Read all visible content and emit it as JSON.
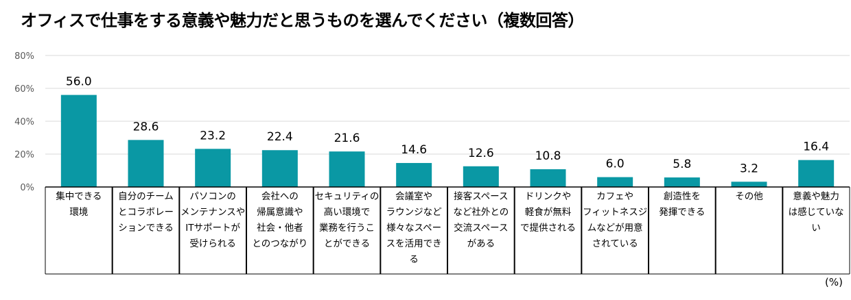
{
  "chart_data": {
    "type": "bar",
    "title": "オフィスで仕事をする意義や魅力だと思うものを選んでください（複数回答）",
    "unit_label": "(%)",
    "ylim": [
      0,
      80
    ],
    "yticks": [
      "0%",
      "20%",
      "40%",
      "60%",
      "80%"
    ],
    "ytick_values": [
      0,
      20,
      40,
      60,
      80
    ],
    "grid": true,
    "bar_color": "#0a98a4",
    "categories": [
      "集中できる環境",
      "自分のチームとコラボレーションできる",
      "パソコンのメンテナンスやITサポートが受けられる",
      "会社への帰属意識や社会・他者とのつながり",
      "セキュリティの高い環境で業務を行うことができる",
      "会議室やラウンジなど様々なスペースを活用できる",
      "接客スペースなど社外との交流スペースがある",
      "ドリンクや軽食が無料で提供される",
      "カフェやフィットネスジムなどが用意されている",
      "創造性を発揮できる",
      "その他",
      "意義や魅力は感じていない"
    ],
    "values": [
      56.0,
      28.6,
      23.2,
      22.4,
      21.6,
      14.6,
      12.6,
      10.8,
      6.0,
      5.8,
      3.2,
      16.4
    ],
    "value_labels": [
      "56.0",
      "28.6",
      "23.2",
      "22.4",
      "21.6",
      "14.6",
      "12.6",
      "10.8",
      "6.0",
      "5.8",
      "3.2",
      "16.4"
    ]
  }
}
